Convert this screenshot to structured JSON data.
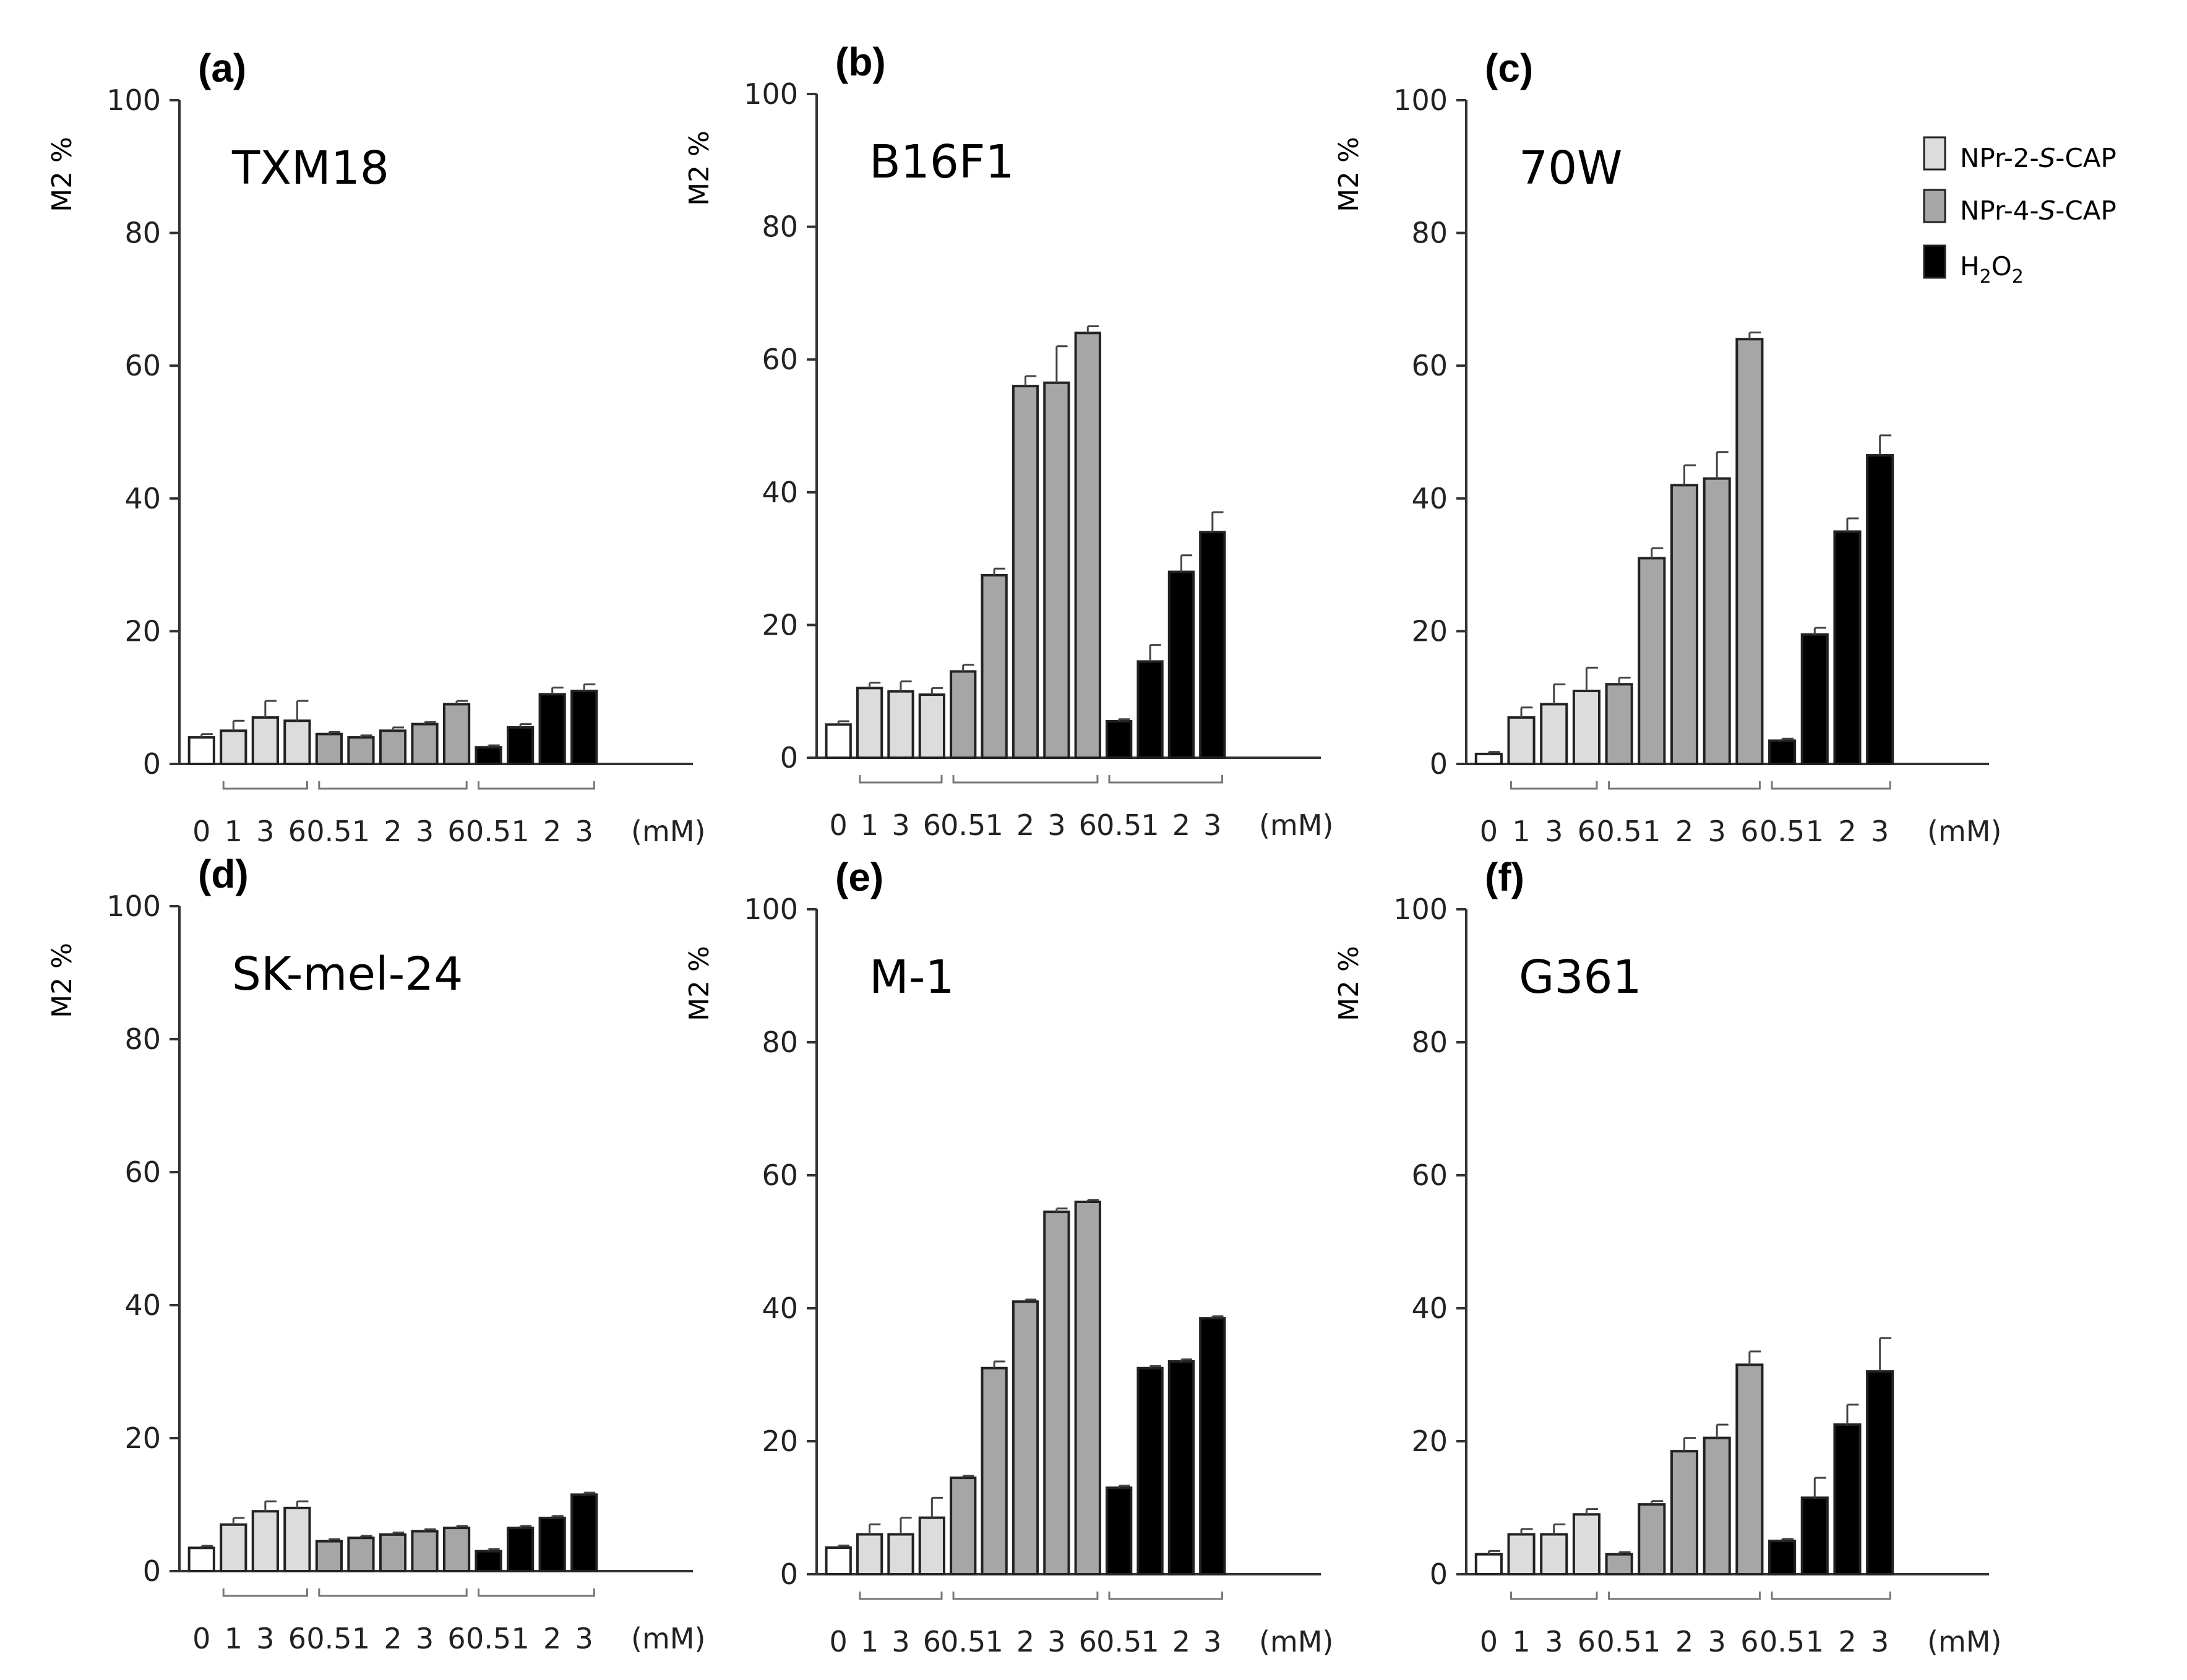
{
  "colors": {
    "control": "#ffffff",
    "npr2": "#dcdcdc",
    "npr4": "#a6a6a6",
    "h2o2": "#000000",
    "axis": "#333333"
  },
  "legend": [
    {
      "label_pre": "NPr-2-",
      "label_it": "S",
      "label_post": "-CAP",
      "color": "#dcdcdc"
    },
    {
      "label_pre": "NPr-4-",
      "label_it": "S",
      "label_post": "-CAP",
      "color": "#a6a6a6"
    },
    {
      "label_pre": "H",
      "sub1": "2",
      "label_mid": "O",
      "sub2": "2",
      "color": "#000000"
    }
  ],
  "unit_label": "(mM)",
  "chart_data": [
    {
      "type": "bar",
      "panel": "(a)",
      "title": "TXM18",
      "ylabel": "M2 %",
      "ylim": [
        0,
        100
      ],
      "yticks": [
        0,
        20,
        40,
        60,
        80,
        100
      ],
      "x_labels": [
        "0",
        "1",
        "3",
        "6",
        "0.5",
        "1",
        "2",
        "3",
        "6",
        "0.5",
        "1",
        "2",
        "3"
      ],
      "groups": [
        "control",
        "npr2",
        "npr2",
        "npr2",
        "npr4",
        "npr4",
        "npr4",
        "npr4",
        "npr4",
        "h2o2",
        "h2o2",
        "h2o2",
        "h2o2"
      ],
      "values": [
        4,
        5,
        7,
        6.5,
        4.5,
        4,
        5,
        6,
        9,
        2.5,
        5.5,
        10.5,
        11
      ],
      "errors": [
        0.5,
        1.5,
        2.5,
        3,
        0.3,
        0.3,
        0.5,
        0.3,
        0.5,
        0.3,
        0.5,
        1,
        1
      ]
    },
    {
      "type": "bar",
      "panel": "(b)",
      "title": "B16F1",
      "ylabel": "M2 %",
      "ylim": [
        0,
        100
      ],
      "yticks": [
        0,
        20,
        40,
        60,
        80,
        100
      ],
      "x_labels": [
        "0",
        "1",
        "3",
        "6",
        "0.5",
        "1",
        "2",
        "3",
        "6",
        "0.5",
        "1",
        "2",
        "3"
      ],
      "groups": [
        "control",
        "npr2",
        "npr2",
        "npr2",
        "npr4",
        "npr4",
        "npr4",
        "npr4",
        "npr4",
        "h2o2",
        "h2o2",
        "h2o2",
        "h2o2"
      ],
      "values": [
        5,
        10.5,
        10,
        9.5,
        13,
        27.5,
        56,
        56.5,
        64,
        5.5,
        14.5,
        28,
        34
      ],
      "errors": [
        0.5,
        0.8,
        1.5,
        1,
        1,
        1,
        1.5,
        5.5,
        1,
        0.3,
        2.5,
        2.5,
        3
      ]
    },
    {
      "type": "bar",
      "panel": "(c)",
      "title": "70W",
      "ylabel": "M2 %",
      "ylim": [
        0,
        100
      ],
      "yticks": [
        0,
        20,
        40,
        60,
        80,
        100
      ],
      "x_labels": [
        "0",
        "1",
        "3",
        "6",
        "0.5",
        "1",
        "2",
        "3",
        "6",
        "0.5",
        "1",
        "2",
        "3"
      ],
      "groups": [
        "control",
        "npr2",
        "npr2",
        "npr2",
        "npr4",
        "npr4",
        "npr4",
        "npr4",
        "npr4",
        "h2o2",
        "h2o2",
        "h2o2",
        "h2o2"
      ],
      "values": [
        1.5,
        7,
        9,
        11,
        12,
        31,
        42,
        43,
        64,
        3.5,
        19.5,
        35,
        46.5
      ],
      "errors": [
        0.3,
        1.5,
        3,
        3.5,
        1,
        1.5,
        3,
        4,
        1,
        0.3,
        1,
        2,
        3
      ]
    },
    {
      "type": "bar",
      "panel": "(d)",
      "title": "SK-mel-24",
      "ylabel": "M2 %",
      "ylim": [
        0,
        100
      ],
      "yticks": [
        0,
        20,
        40,
        60,
        80,
        100
      ],
      "x_labels": [
        "0",
        "1",
        "3",
        "6",
        "0.5",
        "1",
        "2",
        "3",
        "6",
        "0.5",
        "1",
        "2",
        "3"
      ],
      "groups": [
        "control",
        "npr2",
        "npr2",
        "npr2",
        "npr4",
        "npr4",
        "npr4",
        "npr4",
        "npr4",
        "h2o2",
        "h2o2",
        "h2o2",
        "h2o2"
      ],
      "values": [
        3.5,
        7,
        9,
        9.5,
        4.5,
        5,
        5.5,
        6,
        6.5,
        3,
        6.5,
        8,
        11.5
      ],
      "errors": [
        0.3,
        1,
        1.5,
        1,
        0.3,
        0.3,
        0.3,
        0.3,
        0.3,
        0.3,
        0.3,
        0.3,
        0.3
      ]
    },
    {
      "type": "bar",
      "panel": "(e)",
      "title": "M-1",
      "ylabel": "M2 %",
      "ylim": [
        0,
        100
      ],
      "yticks": [
        0,
        20,
        40,
        60,
        80,
        100
      ],
      "x_labels": [
        "0",
        "1",
        "3",
        "6",
        "0.5",
        "1",
        "2",
        "3",
        "6",
        "0.5",
        "1",
        "2",
        "3"
      ],
      "groups": [
        "control",
        "npr2",
        "npr2",
        "npr2",
        "npr4",
        "npr4",
        "npr4",
        "npr4",
        "npr4",
        "h2o2",
        "h2o2",
        "h2o2",
        "h2o2"
      ],
      "values": [
        4,
        6,
        6,
        8.5,
        14.5,
        31,
        41,
        54.5,
        56,
        13,
        31,
        32,
        38.5
      ],
      "errors": [
        0.3,
        1.5,
        2.5,
        3,
        0.3,
        1,
        0.3,
        0.5,
        0.3,
        0.3,
        0.3,
        0.3,
        0.3
      ]
    },
    {
      "type": "bar",
      "panel": "(f)",
      "title": "G361",
      "ylabel": "M2 %",
      "ylim": [
        0,
        100
      ],
      "yticks": [
        0,
        20,
        40,
        60,
        80,
        100
      ],
      "x_labels": [
        "0",
        "1",
        "3",
        "6",
        "0.5",
        "1",
        "2",
        "3",
        "6",
        "0.5",
        "1",
        "2",
        "3"
      ],
      "groups": [
        "control",
        "npr2",
        "npr2",
        "npr2",
        "npr4",
        "npr4",
        "npr4",
        "npr4",
        "npr4",
        "h2o2",
        "h2o2",
        "h2o2",
        "h2o2"
      ],
      "values": [
        3,
        6,
        6,
        9,
        3,
        10.5,
        18.5,
        20.5,
        31.5,
        5,
        11.5,
        22.5,
        30.5
      ],
      "errors": [
        0.5,
        0.8,
        1.5,
        0.8,
        0.3,
        0.5,
        2,
        2,
        2,
        0.3,
        3,
        3,
        5
      ]
    }
  ]
}
